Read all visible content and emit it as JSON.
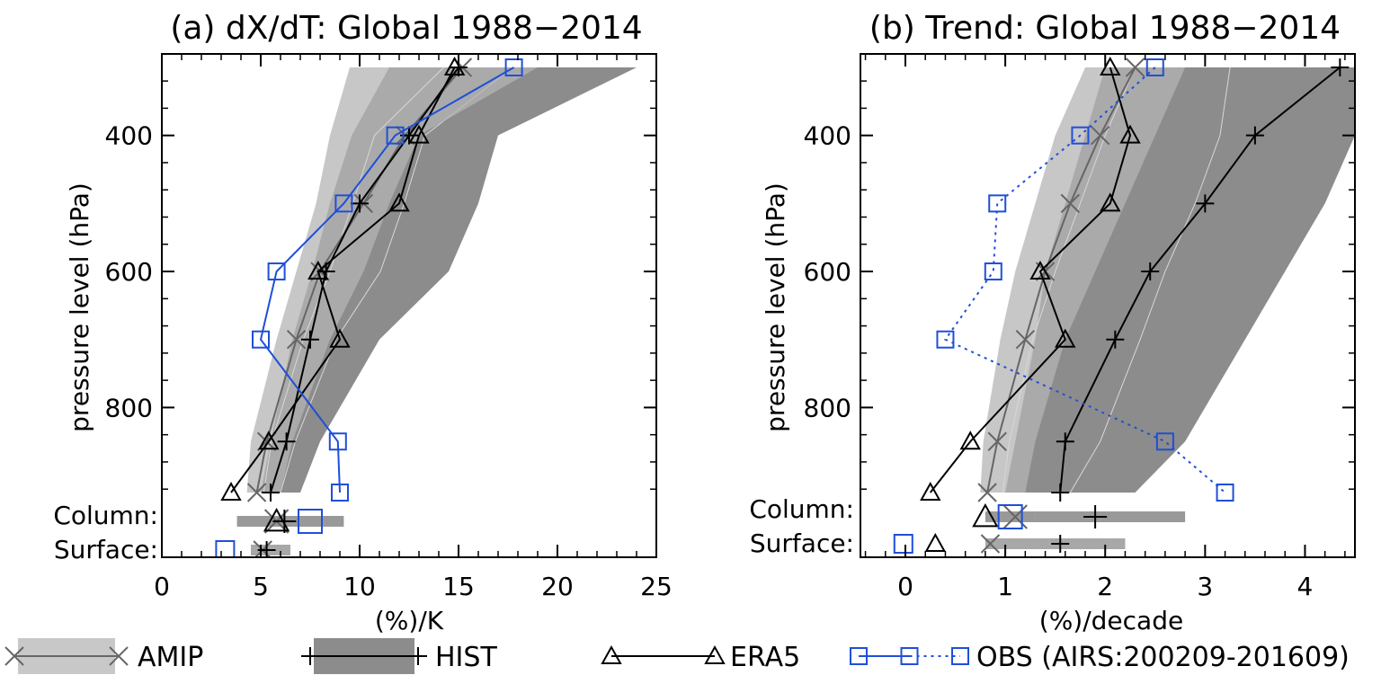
{
  "figure": {
    "legend": [
      {
        "name": "AMIP",
        "marker": "x",
        "color": "#666666",
        "band": "#c8c8c8"
      },
      {
        "name": "HIST",
        "marker": "+",
        "color": "#000000",
        "band": "#8c8c8c"
      },
      {
        "name": "ERA5",
        "marker": "triangle",
        "color": "#000000"
      },
      {
        "name": "OBS (AIRS:200209-201609)",
        "marker": "square",
        "color": "#1f4fd8"
      }
    ]
  },
  "chart_data": [
    {
      "type": "line",
      "title": "(a) dX/dT: Global 1988−2014",
      "xlabel": "(%)/K",
      "ylabel": "pressure level (hPa)",
      "xlim": [
        0,
        25
      ],
      "xticks": [
        0,
        5,
        10,
        15,
        20,
        25
      ],
      "yticks": [
        400,
        600,
        800
      ],
      "extra_rows": [
        "Column:",
        "Surface:"
      ],
      "bands": {
        "AMIP": {
          "levels": [
            300,
            400,
            500,
            600,
            700,
            850,
            925
          ],
          "low": [
            9.5,
            8.5,
            7.8,
            6.8,
            5.8,
            4.5,
            4.3
          ],
          "high": [
            19.0,
            13.0,
            11.5,
            10.2,
            8.5,
            6.6,
            6.0
          ]
        },
        "HIST": {
          "levels": [
            300,
            400,
            500,
            600,
            700,
            850,
            925
          ],
          "low": [
            11.5,
            9.6,
            8.5,
            7.6,
            6.6,
            5.5,
            5.0
          ],
          "high": [
            24.0,
            17.0,
            16.0,
            14.5,
            11.0,
            8.0,
            7.0
          ]
        },
        "column": {
          "AMIP": [
            3.8,
            9.2
          ],
          "HIST": [
            4.5,
            6.5
          ]
        },
        "surface": {
          "AMIP": [
            4.5,
            6.5
          ]
        }
      },
      "series": [
        {
          "name": "AMIP",
          "levels": [
            300,
            400,
            500,
            600,
            700,
            850,
            925
          ],
          "values": [
            15.2,
            12.3,
            10.2,
            8.0,
            6.8,
            5.3,
            4.8
          ],
          "column": 5.8,
          "surface": 5.1
        },
        {
          "name": "HIST",
          "levels": [
            300,
            400,
            500,
            600,
            700,
            850,
            925
          ],
          "values": [
            15.0,
            12.5,
            10.0,
            8.3,
            7.5,
            6.3,
            5.5
          ],
          "column": 6.2,
          "surface": 5.3
        },
        {
          "name": "ERA5",
          "levels": [
            300,
            400,
            500,
            600,
            700,
            850,
            925
          ],
          "values": [
            14.8,
            13.0,
            12.0,
            7.9,
            9.0,
            5.4,
            3.5
          ],
          "column": 5.8,
          "surface": null
        },
        {
          "name": "OBS",
          "levels": [
            300,
            400,
            500,
            600,
            700,
            850,
            925
          ],
          "values": [
            17.8,
            11.8,
            9.2,
            5.8,
            5.0,
            8.9,
            9.0
          ],
          "column": 7.5,
          "surface": 3.2,
          "linestyle": [
            "solid"
          ]
        }
      ]
    },
    {
      "type": "line",
      "title": "(b) Trend: Global 1988−2014",
      "xlabel": "(%)/decade",
      "ylabel": "pressure level (hPa)",
      "xlim": [
        -0.45,
        4.5
      ],
      "xticks": [
        0,
        1,
        2,
        3,
        4
      ],
      "yticks": [
        400,
        600,
        800
      ],
      "extra_rows": [
        "Column:",
        "Surface:"
      ],
      "bands": {
        "AMIP": {
          "levels": [
            300,
            400,
            500,
            600,
            700,
            850,
            925
          ],
          "low": [
            1.8,
            1.5,
            1.3,
            1.1,
            0.95,
            0.78,
            0.75
          ],
          "high": [
            2.8,
            2.5,
            2.2,
            1.9,
            1.6,
            1.3,
            1.2
          ]
        },
        "HIST": {
          "levels": [
            300,
            400,
            500,
            600,
            700,
            850,
            925
          ],
          "low": [
            2.0,
            1.8,
            1.6,
            1.4,
            1.3,
            1.1,
            1.0
          ],
          "high": [
            4.5,
            4.5,
            4.2,
            3.8,
            3.4,
            2.8,
            2.3
          ]
        },
        "column": {
          "AMIP": [
            0.8,
            1.3
          ],
          "HIST": [
            1.3,
            2.8
          ]
        },
        "surface": {
          "AMIP": [
            0.8,
            1.2
          ],
          "HIST": [
            1.1,
            2.2
          ]
        }
      },
      "series": [
        {
          "name": "AMIP",
          "levels": [
            300,
            400,
            500,
            600,
            700,
            850,
            925
          ],
          "values": [
            2.3,
            1.95,
            1.65,
            1.4,
            1.2,
            0.92,
            0.82
          ],
          "column": 1.1,
          "surface": 0.85
        },
        {
          "name": "HIST",
          "levels": [
            300,
            400,
            500,
            600,
            700,
            850,
            925
          ],
          "values": [
            4.35,
            3.5,
            3.0,
            2.45,
            2.1,
            1.6,
            1.55
          ],
          "column": 1.9,
          "surface": 1.55
        },
        {
          "name": "ERA5",
          "levels": [
            300,
            400,
            500,
            600,
            700,
            850,
            925
          ],
          "values": [
            2.05,
            2.25,
            2.05,
            1.35,
            1.6,
            0.65,
            0.25
          ],
          "column": 0.8,
          "surface": 0.3
        },
        {
          "name": "OBS",
          "levels": [
            300,
            400,
            500,
            600,
            700,
            850,
            925
          ],
          "values": [
            2.5,
            1.75,
            0.92,
            0.88,
            0.4,
            2.6,
            3.2
          ],
          "column": 1.05,
          "surface": -0.02,
          "linestyle": [
            "dotted"
          ]
        }
      ]
    }
  ]
}
